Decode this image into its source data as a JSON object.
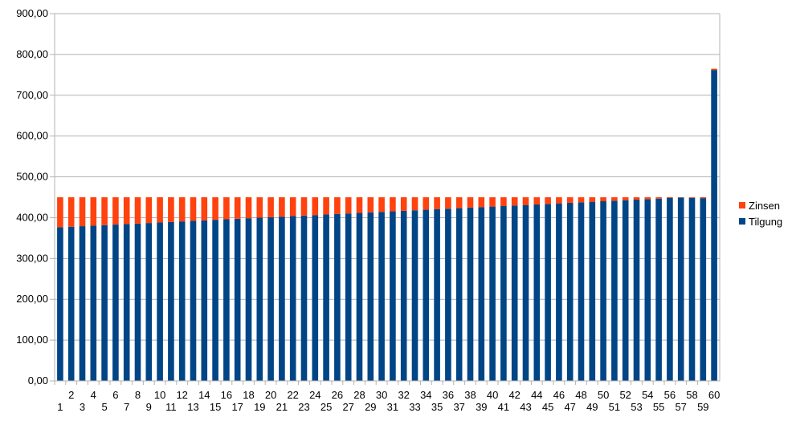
{
  "chart_data": {
    "type": "bar",
    "stacked": true,
    "title": "",
    "xlabel": "",
    "ylabel": "",
    "ylim": [
      0,
      900
    ],
    "y_ticks": [
      "0,00",
      "100,00",
      "200,00",
      "300,00",
      "400,00",
      "500,00",
      "600,00",
      "700,00",
      "800,00",
      "900,00"
    ],
    "categories": [
      "1",
      "2",
      "3",
      "4",
      "5",
      "6",
      "7",
      "8",
      "9",
      "10",
      "11",
      "12",
      "13",
      "14",
      "15",
      "16",
      "17",
      "18",
      "19",
      "20",
      "21",
      "22",
      "23",
      "24",
      "25",
      "26",
      "27",
      "28",
      "29",
      "30",
      "31",
      "32",
      "33",
      "34",
      "35",
      "36",
      "37",
      "38",
      "39",
      "40",
      "41",
      "42",
      "43",
      "44",
      "45",
      "46",
      "47",
      "48",
      "49",
      "50",
      "51",
      "52",
      "53",
      "54",
      "55",
      "56",
      "57",
      "58",
      "59",
      "60"
    ],
    "series": [
      {
        "name": "Tilgung",
        "color": "#004586",
        "values": [
          376.5,
          377.8,
          379.1,
          380.4,
          381.7,
          383.0,
          384.3,
          385.6,
          386.9,
          388.2,
          389.5,
          390.8,
          392.1,
          393.4,
          394.7,
          396.0,
          397.3,
          398.6,
          399.9,
          401.2,
          402.5,
          403.8,
          405.1,
          406.4,
          407.7,
          409.0,
          410.3,
          411.6,
          412.9,
          414.2,
          415.5,
          416.8,
          418.1,
          419.4,
          420.7,
          422.0,
          423.3,
          424.6,
          425.9,
          427.2,
          428.5,
          429.8,
          431.1,
          432.4,
          433.7,
          435.0,
          436.3,
          437.6,
          438.9,
          440.2,
          441.5,
          442.8,
          444.1,
          445.4,
          446.7,
          448.0,
          449.3,
          448.5,
          447.8,
          762.0
        ]
      },
      {
        "name": "Zinsen",
        "color": "#ff420e",
        "values": [
          73.5,
          72.2,
          70.9,
          69.6,
          68.3,
          67.0,
          65.7,
          64.4,
          63.1,
          61.8,
          60.5,
          59.2,
          57.9,
          56.6,
          55.3,
          54.0,
          52.7,
          51.4,
          50.1,
          48.8,
          47.5,
          46.2,
          44.9,
          43.6,
          42.3,
          41.0,
          39.7,
          38.4,
          37.1,
          35.8,
          34.5,
          33.2,
          31.9,
          30.6,
          29.3,
          28.0,
          26.7,
          25.4,
          24.1,
          22.8,
          21.5,
          20.2,
          18.9,
          17.6,
          16.3,
          15.0,
          13.7,
          12.4,
          11.1,
          9.8,
          8.5,
          7.2,
          5.9,
          4.6,
          3.3,
          2.0,
          0.7,
          1.5,
          2.2,
          3.0
        ]
      }
    ],
    "grid": true,
    "legend_position": "right"
  }
}
